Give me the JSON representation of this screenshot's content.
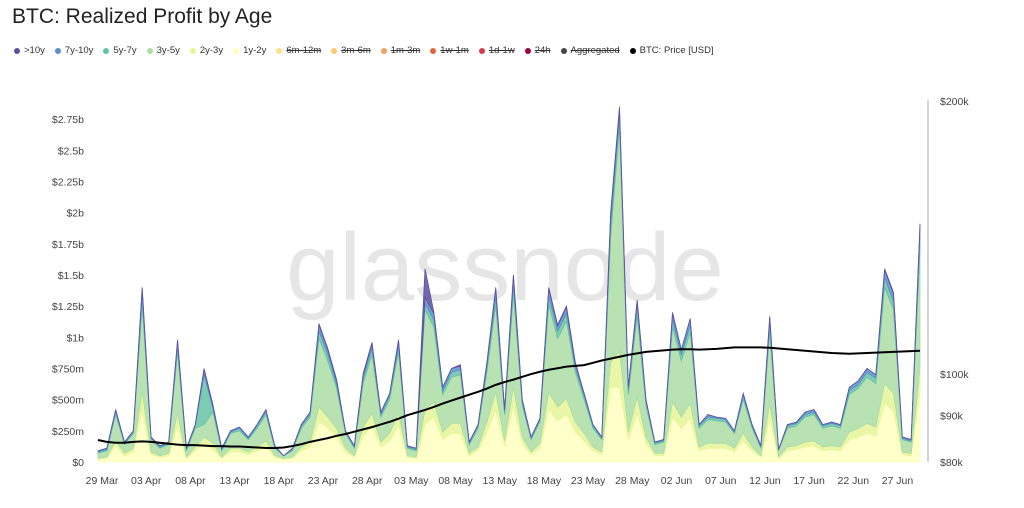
{
  "title": "BTC: Realized Profit by Age",
  "legend": [
    {
      "label": ">10y",
      "color": "#5e4fa2",
      "active": true
    },
    {
      "label": "7y-10y",
      "color": "#5b8ec9",
      "active": true
    },
    {
      "label": "5y-7y",
      "color": "#66c2a5",
      "active": true
    },
    {
      "label": "3y-5y",
      "color": "#abdda4",
      "active": true
    },
    {
      "label": "2y-3y",
      "color": "#e6f598",
      "active": true
    },
    {
      "label": "1y-2y",
      "color": "#ffffbf",
      "active": true
    },
    {
      "label": "6m-12m",
      "color": "#fee08b",
      "active": false
    },
    {
      "label": "3m-6m",
      "color": "#fdc86f",
      "active": false
    },
    {
      "label": "1m-3m",
      "color": "#f4a15d",
      "active": false
    },
    {
      "label": "1w-1m",
      "color": "#e4653f",
      "active": false
    },
    {
      "label": "1d-1w",
      "color": "#d53e4f",
      "active": false
    },
    {
      "label": "24h",
      "color": "#9e0142",
      "active": false
    },
    {
      "label": "Aggregated",
      "color": "#444444",
      "active": false
    },
    {
      "label": "BTC: Price [USD]",
      "color": "#000000",
      "active": true
    }
  ],
  "watermark": "glassnode",
  "chart_data": {
    "type": "area",
    "stacked": true,
    "title": "BTC: Realized Profit by Age",
    "x_start": "29 Mar",
    "x_end": "30 Jun",
    "x_ticks": [
      "29 Mar",
      "03 Apr",
      "08 Apr",
      "13 Apr",
      "18 Apr",
      "23 Apr",
      "28 Apr",
      "03 May",
      "08 May",
      "13 May",
      "18 May",
      "23 May",
      "28 May",
      "02 Jun",
      "07 Jun",
      "12 Jun",
      "17 Jun",
      "22 Jun",
      "27 Jun"
    ],
    "y_left": {
      "unit": "USD (billions)",
      "range": [
        0,
        2.9
      ],
      "ticks": [
        0,
        0.25,
        0.5,
        0.75,
        1,
        1.25,
        1.5,
        1.75,
        2,
        2.25,
        2.5,
        2.75
      ],
      "tick_labels": [
        "$0",
        "$250m",
        "$500m",
        "$750m",
        "$1b",
        "$1.25b",
        "$1.5b",
        "$1.75b",
        "$2b",
        "$2.25b",
        "$2.5b",
        "$2.75b"
      ]
    },
    "y_right": {
      "scale": "log",
      "range": [
        80,
        200
      ],
      "ticks": [
        80,
        90,
        100,
        200
      ],
      "tick_labels": [
        "$80k",
        "$90k",
        "$100k",
        "$200k"
      ]
    },
    "grid": false,
    "legend_position": "top-left",
    "series": [
      {
        "name": "1y-2y",
        "color": "#ffffbf",
        "values": [
          0.02,
          0.03,
          0.13,
          0.05,
          0.08,
          0.42,
          0.06,
          0.04,
          0.05,
          0.29,
          0.03,
          0.09,
          0.15,
          0.1,
          0.03,
          0.08,
          0.08,
          0.06,
          0.09,
          0.13,
          0.04,
          0.02,
          0.03,
          0.09,
          0.12,
          0.33,
          0.27,
          0.2,
          0.08,
          0.04,
          0.21,
          0.29,
          0.12,
          0.17,
          0.29,
          0.04,
          0.03,
          0.3,
          0.36,
          0.18,
          0.23,
          0.23,
          0.05,
          0.09,
          0.24,
          0.42,
          0.13,
          0.45,
          0.15,
          0.06,
          0.11,
          0.42,
          0.33,
          0.38,
          0.24,
          0.17,
          0.09,
          0.06,
          0.6,
          0.6,
          0.18,
          0.39,
          0.15,
          0.05,
          0.05,
          0.36,
          0.27,
          0.35,
          0.09,
          0.11,
          0.11,
          0.11,
          0.08,
          0.17,
          0.09,
          0.04,
          0.35,
          0.03,
          0.09,
          0.1,
          0.12,
          0.13,
          0.09,
          0.1,
          0.09,
          0.18,
          0.2,
          0.23,
          0.21,
          0.47,
          0.41,
          0.06,
          0.05,
          0.57
        ]
      },
      {
        "name": "2y-3y",
        "color": "#e6f598",
        "values": [
          0.01,
          0.01,
          0.04,
          0.02,
          0.03,
          0.14,
          0.02,
          0.01,
          0.02,
          0.1,
          0.01,
          0.03,
          0.05,
          0.05,
          0.01,
          0.03,
          0.03,
          0.02,
          0.03,
          0.04,
          0.01,
          0.01,
          0.01,
          0.03,
          0.04,
          0.11,
          0.09,
          0.07,
          0.03,
          0.01,
          0.07,
          0.1,
          0.04,
          0.06,
          0.1,
          0.01,
          0.01,
          0.12,
          0.12,
          0.06,
          0.08,
          0.08,
          0.02,
          0.03,
          0.08,
          0.14,
          0.04,
          0.15,
          0.05,
          0.02,
          0.04,
          0.14,
          0.11,
          0.13,
          0.08,
          0.06,
          0.03,
          0.02,
          0.2,
          0.29,
          0.06,
          0.13,
          0.05,
          0.02,
          0.02,
          0.12,
          0.09,
          0.12,
          0.03,
          0.04,
          0.04,
          0.04,
          0.03,
          0.06,
          0.03,
          0.01,
          0.12,
          0.01,
          0.03,
          0.03,
          0.04,
          0.04,
          0.03,
          0.03,
          0.03,
          0.06,
          0.07,
          0.08,
          0.07,
          0.16,
          0.14,
          0.02,
          0.02,
          0.19
        ]
      },
      {
        "name": "3y-5y",
        "color": "#abdda4",
        "values": [
          0.04,
          0.05,
          0.21,
          0.07,
          0.12,
          0.7,
          0.1,
          0.06,
          0.07,
          0.49,
          0.05,
          0.15,
          0.1,
          0.25,
          0.05,
          0.12,
          0.14,
          0.1,
          0.15,
          0.21,
          0.06,
          0.02,
          0.05,
          0.15,
          0.2,
          0.55,
          0.45,
          0.32,
          0.12,
          0.06,
          0.35,
          0.47,
          0.2,
          0.27,
          0.49,
          0.06,
          0.05,
          0.8,
          0.6,
          0.3,
          0.37,
          0.39,
          0.07,
          0.15,
          0.4,
          0.7,
          0.21,
          0.75,
          0.25,
          0.1,
          0.17,
          0.7,
          0.55,
          0.62,
          0.4,
          0.27,
          0.15,
          0.1,
          1.0,
          1.8,
          0.3,
          0.65,
          0.25,
          0.07,
          0.09,
          0.6,
          0.45,
          0.57,
          0.15,
          0.19,
          0.18,
          0.17,
          0.12,
          0.27,
          0.15,
          0.06,
          0.58,
          0.05,
          0.15,
          0.16,
          0.2,
          0.21,
          0.15,
          0.16,
          0.15,
          0.3,
          0.32,
          0.37,
          0.35,
          0.77,
          0.67,
          0.1,
          0.09,
          0.95
        ]
      },
      {
        "name": "5y-7y",
        "color": "#66c2a5",
        "values": [
          0.01,
          0.01,
          0.02,
          0.01,
          0.01,
          0.07,
          0.01,
          0.01,
          0.01,
          0.05,
          0.01,
          0.02,
          0.4,
          0.03,
          0.01,
          0.01,
          0.02,
          0.01,
          0.02,
          0.02,
          0.01,
          0,
          0.01,
          0.02,
          0.02,
          0.06,
          0.05,
          0.03,
          0.01,
          0.01,
          0.04,
          0.05,
          0.02,
          0.03,
          0.05,
          0.01,
          0.01,
          0.05,
          0.06,
          0.03,
          0.04,
          0.04,
          0.01,
          0.02,
          0.04,
          0.07,
          0.02,
          0.08,
          0.03,
          0.01,
          0.02,
          0.07,
          0.06,
          0.06,
          0.04,
          0.03,
          0.02,
          0.01,
          0.1,
          0.08,
          0.03,
          0.07,
          0.03,
          0.01,
          0.01,
          0.06,
          0.05,
          0.06,
          0.02,
          0.02,
          0.02,
          0.02,
          0.01,
          0.03,
          0.02,
          0.01,
          0.06,
          0.01,
          0.02,
          0.02,
          0.02,
          0.02,
          0.02,
          0.02,
          0.02,
          0.03,
          0.03,
          0.04,
          0.04,
          0.08,
          0.07,
          0.01,
          0.01,
          0.1
        ]
      },
      {
        "name": "7y-10y",
        "color": "#5b8ec9",
        "values": [
          0.01,
          0.01,
          0.02,
          0.01,
          0.01,
          0.06,
          0.01,
          0.01,
          0.01,
          0.04,
          0.01,
          0.01,
          0.04,
          0.02,
          0.01,
          0.01,
          0.01,
          0.01,
          0.01,
          0.02,
          0.01,
          0,
          0.01,
          0.01,
          0.02,
          0.05,
          0.04,
          0.03,
          0.01,
          0.01,
          0.03,
          0.04,
          0.02,
          0.02,
          0.04,
          0.01,
          0.01,
          0.05,
          0.05,
          0.03,
          0.03,
          0.03,
          0.01,
          0.01,
          0.03,
          0.06,
          0.02,
          0.06,
          0.02,
          0.01,
          0.01,
          0.06,
          0.04,
          0.05,
          0.03,
          0.02,
          0.01,
          0.01,
          0.08,
          0.06,
          0.03,
          0.05,
          0.02,
          0.01,
          0.01,
          0.05,
          0.04,
          0.05,
          0.01,
          0.02,
          0.01,
          0.01,
          0.01,
          0.02,
          0.01,
          0.01,
          0.05,
          0,
          0.01,
          0.01,
          0.02,
          0.02,
          0.01,
          0.01,
          0.01,
          0.03,
          0.03,
          0.03,
          0.03,
          0.06,
          0.06,
          0.01,
          0.01,
          0.09
        ]
      },
      {
        "name": ">10y",
        "color": "#5e4fa2",
        "values": [
          0,
          0,
          0,
          0,
          0,
          0.01,
          0,
          0,
          0,
          0.01,
          0,
          0,
          0.01,
          0.01,
          0,
          0,
          0,
          0,
          0,
          0,
          0,
          0,
          0,
          0,
          0,
          0.01,
          0.01,
          0.01,
          0,
          0,
          0.01,
          0.01,
          0,
          0,
          0.01,
          0,
          0,
          0.23,
          0.01,
          0,
          0,
          0.01,
          0,
          0,
          0.01,
          0.01,
          0,
          0.01,
          0,
          0,
          0,
          0.01,
          0.01,
          0.01,
          0.01,
          0,
          0,
          0,
          0.02,
          0.02,
          0,
          0.01,
          0,
          0,
          0,
          0.01,
          0,
          0,
          0,
          0,
          0,
          0,
          0,
          0,
          0,
          0,
          0.01,
          0,
          0,
          0,
          0,
          0,
          0,
          0,
          0,
          0,
          0,
          0,
          0,
          0.01,
          0.01,
          0,
          0,
          0.01
        ]
      }
    ],
    "price": {
      "name": "BTC: Price [USD]",
      "unit": "k USD",
      "color": "#000000",
      "values": [
        84.6,
        84.2,
        84,
        84,
        84.2,
        84.3,
        84.2,
        84,
        83.8,
        83.6,
        83.5,
        83.5,
        83.4,
        83.3,
        83.3,
        83.2,
        83.2,
        83.1,
        83,
        82.9,
        82.9,
        83,
        83.3,
        83.7,
        84.2,
        84.6,
        85,
        85.5,
        85.9,
        86.4,
        86.9,
        87.4,
        88,
        88.6,
        89.3,
        90.1,
        90.7,
        91.3,
        92,
        92.8,
        93.5,
        94.2,
        94.9,
        95.6,
        96.4,
        97.3,
        98,
        98.6,
        99.3,
        100,
        100.6,
        101.1,
        101.5,
        101.9,
        102.1,
        102.3,
        102.9,
        103.5,
        104,
        104.5,
        105,
        105.4,
        105.8,
        106,
        106.2,
        106.4,
        106.5,
        106.5,
        106.4,
        106.5,
        106.6,
        106.8,
        107,
        107,
        107,
        107,
        106.9,
        106.7,
        106.5,
        106.3,
        106.1,
        105.9,
        105.7,
        105.5,
        105.4,
        105.3,
        105.4,
        105.5,
        105.6,
        105.7,
        105.8,
        105.9,
        106,
        106.1
      ]
    }
  }
}
